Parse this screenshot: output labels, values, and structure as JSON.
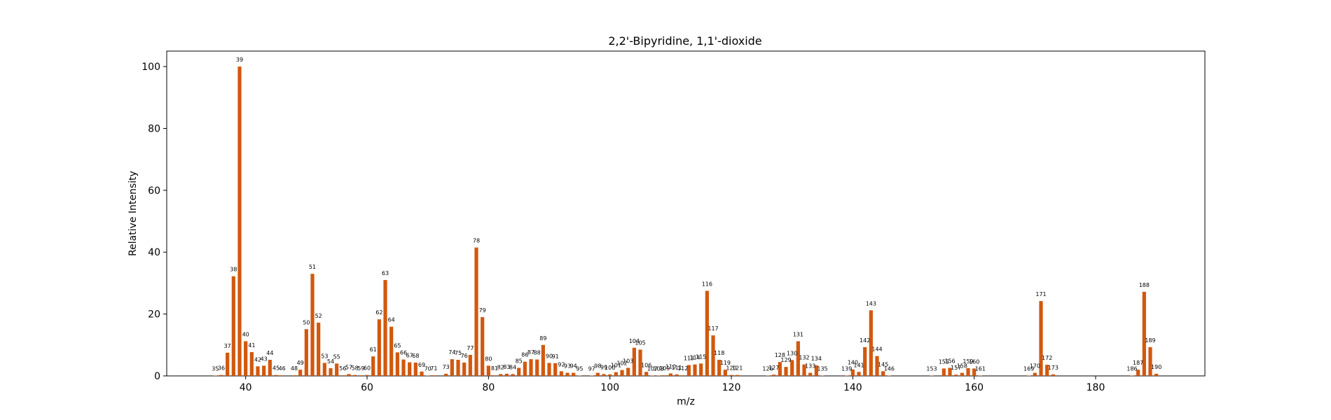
{
  "chart_data": {
    "type": "bar",
    "title": "2,2'-Bipyridine, 1,1'-dioxide",
    "xlabel": "m/z",
    "ylabel": "Relative Intensity",
    "xlim": [
      27,
      198
    ],
    "ylim": [
      0,
      105
    ],
    "xticks": [
      40,
      60,
      80,
      100,
      120,
      140,
      160,
      180
    ],
    "yticks": [
      0,
      20,
      40,
      60,
      80,
      100
    ],
    "bar_color": "#d2580e",
    "points": [
      {
        "x": 35,
        "y": 0.1
      },
      {
        "x": 36,
        "y": 0.3
      },
      {
        "x": 37,
        "y": 7.5
      },
      {
        "x": 38,
        "y": 32.2
      },
      {
        "x": 39,
        "y": 100
      },
      {
        "x": 40,
        "y": 11.2
      },
      {
        "x": 41,
        "y": 7.7
      },
      {
        "x": 42,
        "y": 3.1
      },
      {
        "x": 43,
        "y": 3.3
      },
      {
        "x": 44,
        "y": 5.2
      },
      {
        "x": 45,
        "y": 0.3
      },
      {
        "x": 46,
        "y": 0.2
      },
      {
        "x": 48,
        "y": 0.2
      },
      {
        "x": 49,
        "y": 2
      },
      {
        "x": 50,
        "y": 15.1
      },
      {
        "x": 51,
        "y": 33
      },
      {
        "x": 52,
        "y": 17.2
      },
      {
        "x": 53,
        "y": 4.2
      },
      {
        "x": 54,
        "y": 2.5
      },
      {
        "x": 55,
        "y": 4
      },
      {
        "x": 56,
        "y": 0.2
      },
      {
        "x": 57,
        "y": 0.6
      },
      {
        "x": 58,
        "y": 0.3
      },
      {
        "x": 59,
        "y": 0.2
      },
      {
        "x": 60,
        "y": 0.3
      },
      {
        "x": 61,
        "y": 6.3
      },
      {
        "x": 62,
        "y": 18.3
      },
      {
        "x": 63,
        "y": 31
      },
      {
        "x": 64,
        "y": 15.9
      },
      {
        "x": 65,
        "y": 7.6
      },
      {
        "x": 66,
        "y": 5.3
      },
      {
        "x": 67,
        "y": 4.4
      },
      {
        "x": 68,
        "y": 4.3
      },
      {
        "x": 69,
        "y": 1.4
      },
      {
        "x": 70,
        "y": 0.1
      },
      {
        "x": 71,
        "y": 0.2
      },
      {
        "x": 73,
        "y": 0.7
      },
      {
        "x": 74,
        "y": 5.4
      },
      {
        "x": 75,
        "y": 5.2
      },
      {
        "x": 76,
        "y": 4.3
      },
      {
        "x": 77,
        "y": 6.8
      },
      {
        "x": 78,
        "y": 41.5
      },
      {
        "x": 79,
        "y": 19
      },
      {
        "x": 80,
        "y": 3.3
      },
      {
        "x": 81,
        "y": 0.2
      },
      {
        "x": 82,
        "y": 0.6
      },
      {
        "x": 83,
        "y": 0.7
      },
      {
        "x": 84,
        "y": 0.6
      },
      {
        "x": 85,
        "y": 2.6
      },
      {
        "x": 86,
        "y": 4.6
      },
      {
        "x": 87,
        "y": 5.4
      },
      {
        "x": 88,
        "y": 5.3
      },
      {
        "x": 89,
        "y": 10
      },
      {
        "x": 90,
        "y": 4.2
      },
      {
        "x": 91,
        "y": 4.1
      },
      {
        "x": 92,
        "y": 1.5
      },
      {
        "x": 93,
        "y": 1
      },
      {
        "x": 94,
        "y": 1
      },
      {
        "x": 95,
        "y": 0.1
      },
      {
        "x": 97,
        "y": 0.1
      },
      {
        "x": 98,
        "y": 1
      },
      {
        "x": 99,
        "y": 0.6
      },
      {
        "x": 100,
        "y": 0.5
      },
      {
        "x": 101,
        "y": 1.2
      },
      {
        "x": 102,
        "y": 1.9
      },
      {
        "x": 103,
        "y": 2.6
      },
      {
        "x": 104,
        "y": 9.1
      },
      {
        "x": 105,
        "y": 8.5
      },
      {
        "x": 106,
        "y": 1.3
      },
      {
        "x": 107,
        "y": 0.1
      },
      {
        "x": 108,
        "y": 0.1
      },
      {
        "x": 109,
        "y": 0.2
      },
      {
        "x": 110,
        "y": 0.8
      },
      {
        "x": 111,
        "y": 0.5
      },
      {
        "x": 112,
        "y": 0.2
      },
      {
        "x": 113,
        "y": 3.5
      },
      {
        "x": 114,
        "y": 3.7
      },
      {
        "x": 115,
        "y": 4
      },
      {
        "x": 116,
        "y": 27.5
      },
      {
        "x": 117,
        "y": 13.1
      },
      {
        "x": 118,
        "y": 5.2
      },
      {
        "x": 119,
        "y": 2
      },
      {
        "x": 120,
        "y": 0.3
      },
      {
        "x": 121,
        "y": 0.3
      },
      {
        "x": 126,
        "y": 0.1
      },
      {
        "x": 127,
        "y": 0.4
      },
      {
        "x": 128,
        "y": 4.5
      },
      {
        "x": 129,
        "y": 2.9
      },
      {
        "x": 130,
        "y": 5.1
      },
      {
        "x": 131,
        "y": 11.2
      },
      {
        "x": 132,
        "y": 3.7
      },
      {
        "x": 133,
        "y": 1
      },
      {
        "x": 134,
        "y": 3.4
      },
      {
        "x": 135,
        "y": 0.1
      },
      {
        "x": 139,
        "y": 0.1
      },
      {
        "x": 140,
        "y": 2.1
      },
      {
        "x": 141,
        "y": 1.3
      },
      {
        "x": 142,
        "y": 9.3
      },
      {
        "x": 143,
        "y": 21.2
      },
      {
        "x": 144,
        "y": 6.4
      },
      {
        "x": 145,
        "y": 1.5
      },
      {
        "x": 146,
        "y": 0.1
      },
      {
        "x": 153,
        "y": 0.1
      },
      {
        "x": 155,
        "y": 2.4
      },
      {
        "x": 156,
        "y": 2.6
      },
      {
        "x": 157,
        "y": 0.4
      },
      {
        "x": 158,
        "y": 1
      },
      {
        "x": 159,
        "y": 2.5
      },
      {
        "x": 160,
        "y": 2.4
      },
      {
        "x": 161,
        "y": 0.1
      },
      {
        "x": 169,
        "y": 0.1
      },
      {
        "x": 170,
        "y": 1
      },
      {
        "x": 171,
        "y": 24.2
      },
      {
        "x": 172,
        "y": 3.6
      },
      {
        "x": 173,
        "y": 0.5
      },
      {
        "x": 186,
        "y": 0.1
      },
      {
        "x": 187,
        "y": 2
      },
      {
        "x": 188,
        "y": 27.2
      },
      {
        "x": 189,
        "y": 9.3
      },
      {
        "x": 190,
        "y": 0.7
      }
    ]
  }
}
